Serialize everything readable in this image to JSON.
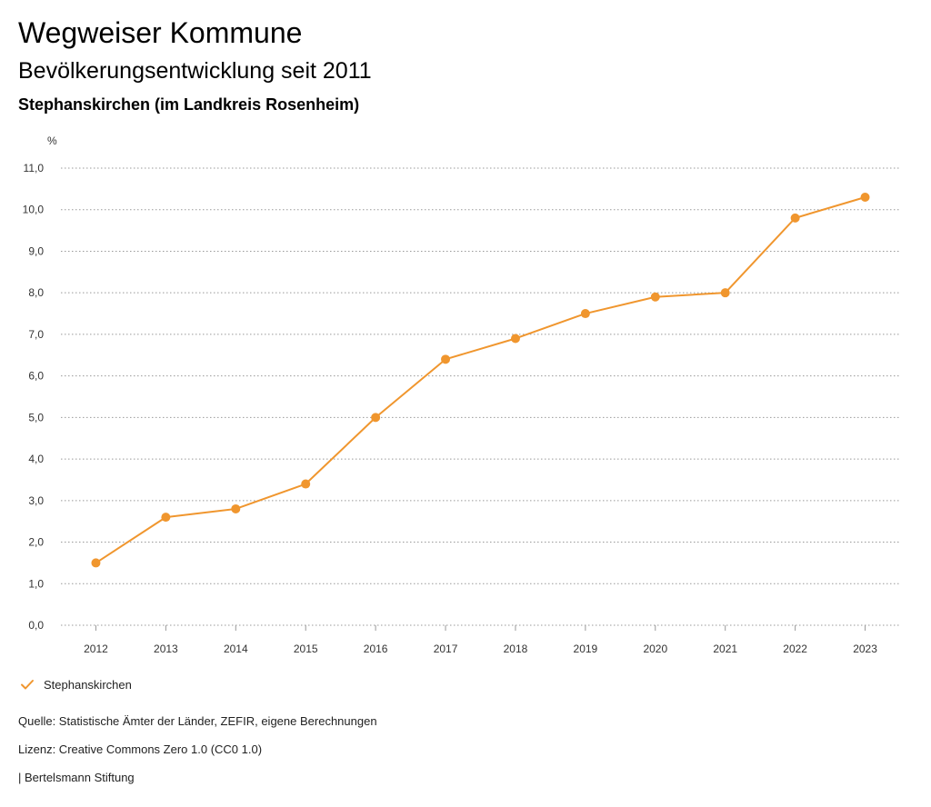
{
  "header": {
    "app_title": "Wegweiser Kommune",
    "chart_title": "Bevölkerungsentwicklung seit 2011",
    "chart_subtitle": "Stephanskirchen (im Landkreis Rosenheim)"
  },
  "colors": {
    "series": "#f0962e",
    "grid": "#999999",
    "text": "#333333"
  },
  "chart_data": {
    "type": "line",
    "title": "Bevölkerungsentwicklung seit 2011",
    "subtitle": "Stephanskirchen (im Landkreis Rosenheim)",
    "xlabel": "",
    "ylabel": "%",
    "ylim": [
      0,
      11
    ],
    "grid": true,
    "categories": [
      "2012",
      "2013",
      "2014",
      "2015",
      "2016",
      "2017",
      "2018",
      "2019",
      "2020",
      "2021",
      "2022",
      "2023"
    ],
    "y_ticks": [
      "0,0",
      "1,0",
      "2,0",
      "3,0",
      "4,0",
      "5,0",
      "6,0",
      "7,0",
      "8,0",
      "9,0",
      "10,0",
      "11,0"
    ],
    "series": [
      {
        "name": "Stephanskirchen",
        "values": [
          1.5,
          2.6,
          2.8,
          3.4,
          5.0,
          6.4,
          6.9,
          7.5,
          7.9,
          8.0,
          9.8,
          10.3
        ]
      }
    ],
    "legend": "bottom-left"
  },
  "legend": {
    "label": "Stephanskirchen"
  },
  "footer": {
    "source": "Quelle: Statistische Ämter der Länder, ZEFIR, eigene Berechnungen",
    "license": "Lizenz: Creative Commons Zero 1.0 (CC0 1.0)",
    "publisher": "| Bertelsmann Stiftung"
  }
}
